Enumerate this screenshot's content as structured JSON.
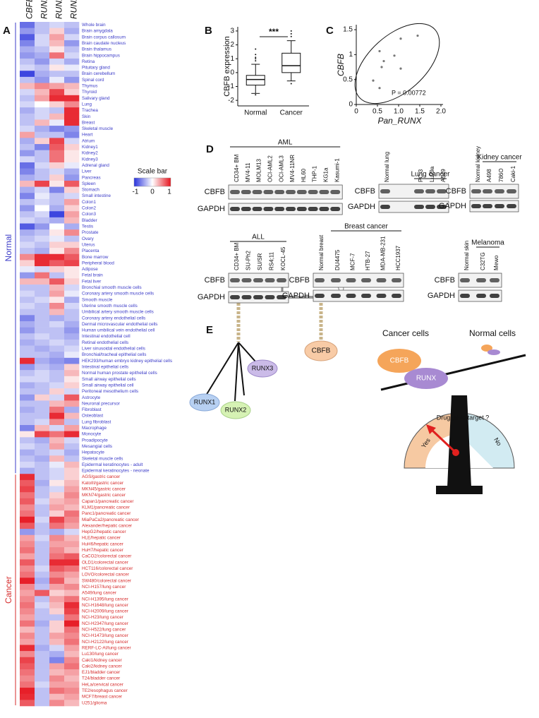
{
  "panels": [
    "A",
    "B",
    "C",
    "D",
    "E"
  ],
  "chart_data": [
    {
      "type": "heatmap",
      "columns": [
        "CBFB",
        "RUNX3",
        "RUNX2",
        "RUNX1"
      ],
      "colorbar_label": "Scale bar",
      "colorbar_ticks": [
        -1,
        0,
        1
      ],
      "groups": [
        {
          "label": "Normal",
          "color": "#3b3bc8",
          "categories": [
            "Whole brain",
            "Brain amygdala",
            "Brain corpus callosum",
            "Brain caudate nucleus",
            "Brain thalamus",
            "Brain hippocampus",
            "Retina",
            "Pituitary gland",
            "Brain cerebellum",
            "Spinal cord",
            "Thymus",
            "Thyroid",
            "Salivary gland",
            "Lung",
            "Trachea",
            "Skin",
            "Breast",
            "Skeletal muscle",
            "Heart",
            "Atrium",
            "Kidney1",
            "Kidney2",
            "Kidney3",
            "Adrenal gland",
            "Liver",
            "Pancreas",
            "Spleen",
            "Stomach",
            "Small intestine",
            "Colon1",
            "Colon2",
            "Colon3",
            "Bladder",
            "Testis",
            "Prostate",
            "Ovary",
            "Uterus",
            "Placenta",
            "Bone marrow",
            "Peripheral blood",
            "Adipose",
            "Fetal brain",
            "Fetal liver",
            "Bronchial smooth muscle cells",
            "Coronary artery smooth muscle cells",
            "Smooth muscle",
            "Uterine smooth muscle cells",
            "Umbilical artery smooth muscle cells",
            "Coronary artery endothelial cells",
            "Dermal microvascular endothelial cells",
            "Human umbilical vein endothelial cell",
            "Intestinal endothelial cell",
            "Retinal endothelial cells",
            "Liver sinusoidal endothelial cells",
            "Bronchial/tracheal epithelial cells",
            "HEK293/human embryo kidney epithelial cells",
            "Intestinal epithelial cells",
            "Normal human prostate epithelial cells",
            "Small airway epithelial cells",
            "Small airway epithelial cell",
            "Peritoneal mesothelium cells",
            "Astrocyte",
            "Neuronal precursor",
            "Fibroblast",
            "Osteoblast",
            "Lung fibroblast",
            "Macrophage",
            "Monocyte",
            "Proadipocyte",
            "Mesangial cells",
            "Hepatocyte",
            "Skeletal muscle cells",
            "Epidermal keratinocytes - adult",
            "Epidermal keratinocytes - neonate"
          ],
          "values": [
            [
              -0.7,
              -0.3,
              -0.2,
              -0.3
            ],
            [
              -0.5,
              -0.3,
              0.2,
              -0.4
            ],
            [
              -0.8,
              -0.2,
              0.4,
              -0.2
            ],
            [
              -0.6,
              -0.2,
              0.3,
              -0.5
            ],
            [
              -0.4,
              -0.3,
              0.1,
              -0.3
            ],
            [
              -0.5,
              -0.4,
              0.6,
              -0.2
            ],
            [
              -0.3,
              -0.5,
              -0.2,
              -0.4
            ],
            [
              -0.2,
              -0.3,
              0.1,
              -0.1
            ],
            [
              -0.9,
              -0.4,
              -0.3,
              -0.3
            ],
            [
              -0.3,
              -0.5,
              -0.1,
              -0.5
            ],
            [
              0.3,
              0.5,
              0.4,
              0.3
            ],
            [
              -0.2,
              0.3,
              0.8,
              0.2
            ],
            [
              -0.3,
              0.4,
              0.9,
              0.9
            ],
            [
              -0.2,
              0,
              0.2,
              0.5
            ],
            [
              -0.4,
              -0.2,
              -0.3,
              0.9
            ],
            [
              -0.3,
              -0.2,
              0.3,
              0.9
            ],
            [
              -0.3,
              0.3,
              -0.1,
              0.9
            ],
            [
              -0.2,
              -0.4,
              -0.6,
              -0.5
            ],
            [
              0.4,
              -0.3,
              -0.3,
              -0.6
            ],
            [
              -0.4,
              0.2,
              0.8,
              -0.2
            ],
            [
              -0.3,
              -0.6,
              0.7,
              0.2
            ],
            [
              -0.5,
              -0.3,
              0.6,
              0.1
            ],
            [
              -0.2,
              -0.3,
              0.6,
              0.1
            ],
            [
              -0.7,
              -0.2,
              0.2,
              -0.1
            ],
            [
              -0.6,
              -0.3,
              -0.2,
              -0.4
            ],
            [
              -0.4,
              -0.3,
              0.2,
              -0.5
            ],
            [
              0.3,
              0.8,
              0.1,
              0.7
            ],
            [
              -0.4,
              -0.2,
              -0.6,
              0.2
            ],
            [
              -0.6,
              -0.1,
              -0.3,
              -0.2
            ],
            [
              -0.3,
              -0.2,
              -0.3,
              0.4
            ],
            [
              -0.5,
              0,
              -0.4,
              0.2
            ],
            [
              -0.3,
              -0.2,
              -0.9,
              0.4
            ],
            [
              -0.2,
              -0.3,
              -0.4,
              0.3
            ],
            [
              -0.8,
              -0.5,
              0,
              -0.4
            ],
            [
              -0.4,
              -0.3,
              0.1,
              0.5
            ],
            [
              -0.3,
              -0.2,
              -0.1,
              -0.3
            ],
            [
              -0.2,
              -0.3,
              0.2,
              0.2
            ],
            [
              -0.3,
              -0.4,
              0.1,
              0.5
            ],
            [
              0.5,
              0.9,
              0.9,
              0.7
            ],
            [
              0.2,
              0.9,
              0.7,
              0.8
            ],
            [
              -0.1,
              -0.2,
              0.2,
              0.1
            ],
            [
              -0.5,
              0.6,
              -0.3,
              0.1
            ],
            [
              0.3,
              0.3,
              0.7,
              0.2
            ],
            [
              -0.3,
              -0.3,
              0.3,
              -0.2
            ],
            [
              -0.2,
              -0.3,
              0.4,
              -0.1
            ],
            [
              -0.3,
              -0.2,
              0.1,
              -0.4
            ],
            [
              -0.2,
              -0.3,
              0.5,
              -0.2
            ],
            [
              -0.3,
              -0.3,
              0.3,
              -0.3
            ],
            [
              -0.6,
              -0.3,
              -0.4,
              -0.3
            ],
            [
              -0.4,
              -0.3,
              -0.2,
              -0.4
            ],
            [
              -0.5,
              -0.3,
              -0.3,
              -0.5
            ],
            [
              -0.3,
              -0.2,
              -0.3,
              -0.4
            ],
            [
              -0.4,
              -0.3,
              -0.2,
              -0.3
            ],
            [
              -0.3,
              -0.4,
              -0.3,
              -0.2
            ],
            [
              -0.3,
              -0.3,
              -0.4,
              -0.1
            ],
            [
              0.9,
              -0.4,
              -0.5,
              -0.6
            ],
            [
              -0.5,
              -0.3,
              -0.4,
              0.2
            ],
            [
              -0.3,
              -0.2,
              -0.3,
              0.3
            ],
            [
              -0.2,
              -0.2,
              -0.3,
              0.1
            ],
            [
              -0.4,
              -0.3,
              -0.2,
              0.2
            ],
            [
              -0.3,
              -0.3,
              0.2,
              -0.2
            ],
            [
              -0.5,
              0.2,
              -0.2,
              0.7
            ],
            [
              -0.3,
              -0.3,
              0.3,
              0.4
            ],
            [
              -0.4,
              -0.3,
              0.6,
              -0.4
            ],
            [
              -0.3,
              -0.3,
              0.9,
              0.3
            ],
            [
              -0.3,
              -0.2,
              0.5,
              -0.3
            ],
            [
              -0.6,
              0.3,
              -0.2,
              0.4
            ],
            [
              0.1,
              0.8,
              0.6,
              0.9
            ],
            [
              -0.3,
              -0.4,
              0.3,
              -0.2
            ],
            [
              -0.2,
              -0.3,
              0.4,
              -0.3
            ],
            [
              -0.4,
              -0.3,
              -0.2,
              -0.4
            ],
            [
              -0.3,
              -0.4,
              0.3,
              -0.3
            ],
            [
              -0.2,
              -0.3,
              -0.1,
              0.3
            ],
            [
              -0.4,
              -0.3,
              -0.2,
              0.2
            ]
          ]
        },
        {
          "label": "Cancer",
          "color": "#d62b2b",
          "categories": [
            "AGS/gastric cancer",
            "KatoIII/gastric cancer",
            "MKN45/gastric cancer",
            "MKN74/gastric cancer",
            "Capan1/pancreatic cancer",
            "KLM1/pancreatic cancer",
            "Panc1/pancreatic cancer",
            "MiaPaCa2/pancreatic cancer",
            "Alexander/hepatic cancer",
            "HepG2/hepatic cancer",
            "HLE/hepatic cancer",
            "HuH6/hepatic cancer",
            "HuH7/hepatic cancer",
            "CaCO2/colorectal cancer",
            "OLD1/colorectal cancer",
            "HCT116/colorectal cancer",
            "LOVO/colorectal cancer",
            "SW480/colorectal cancer",
            "NCI-H157/lung cancer",
            "A549/lung cancer",
            "NCI-H1395/lung cancer",
            "NCI-H1648/lung cancer",
            "NCI-H2009/lung cancer",
            "NCI-H23/lung cancer",
            "NCI-H2347/lung cancer",
            "NCI-H522/lung cancer",
            "NCI-H1473/lung cancer",
            "NCI-H2122/lung cancer",
            "RERF-LC-AI/lung cancer",
            "Lu130/lung cancer",
            "Caki1/kidney cancer",
            "Caki2/kidney cancer",
            "EJ1/bladder cancer",
            "T24/bladder cancer",
            "HeLa/cervical cancer",
            "TE2/esophagus cancer",
            "MCF7/breast cancer",
            "U251/glioma"
          ],
          "values": [
            [
              0.9,
              -0.3,
              -0.2,
              0.2
            ],
            [
              0.7,
              -0.4,
              0.1,
              0.3
            ],
            [
              0.8,
              -0.3,
              -0.2,
              0.4
            ],
            [
              0.6,
              -0.3,
              0.2,
              0.5
            ],
            [
              0.7,
              -0.2,
              0.3,
              0.4
            ],
            [
              0.5,
              -0.3,
              0.4,
              0.3
            ],
            [
              0.6,
              -0.3,
              0.2,
              0.6
            ],
            [
              0.95,
              -0.2,
              0.8,
              0.5
            ],
            [
              0.7,
              -0.3,
              0.6,
              0.4
            ],
            [
              -0.5,
              -0.3,
              -0.4,
              -0.2
            ],
            [
              0.4,
              -0.2,
              0.5,
              0.3
            ],
            [
              0.5,
              -0.3,
              0.4,
              0.4
            ],
            [
              0.6,
              -0.3,
              0.5,
              0.3
            ],
            [
              0.4,
              -0.3,
              0.6,
              0.7
            ],
            [
              0.7,
              -0.3,
              0.9,
              0.9
            ],
            [
              0.5,
              -0.2,
              0.7,
              0.6
            ],
            [
              0.6,
              -0.3,
              0.5,
              0.4
            ],
            [
              0.95,
              -0.4,
              0.7,
              0.3
            ],
            [
              0.5,
              -0.3,
              0.4,
              0.5
            ],
            [
              0.4,
              0.7,
              0.2,
              0.3
            ],
            [
              0.5,
              -0.3,
              0.4,
              0.6
            ],
            [
              0.6,
              -0.2,
              0.3,
              0.9
            ],
            [
              0.5,
              -0.3,
              0.2,
              0.8
            ],
            [
              0.4,
              -0.3,
              -0.3,
              0.6
            ],
            [
              0.6,
              -0.4,
              0.2,
              0.95
            ],
            [
              0.3,
              -0.3,
              0.2,
              0.6
            ],
            [
              0.5,
              -0.3,
              0.4,
              0.5
            ],
            [
              0.4,
              -0.3,
              0.3,
              0.6
            ],
            [
              0.9,
              -0.4,
              -0.2,
              0.4
            ],
            [
              0.5,
              -0.3,
              -0.4,
              0.3
            ],
            [
              0.8,
              -0.3,
              -0.6,
              0.5
            ],
            [
              0.7,
              -0.3,
              0.4,
              0.6
            ],
            [
              0.6,
              -0.3,
              0.3,
              0.4
            ],
            [
              0.5,
              -0.3,
              0.5,
              0.3
            ],
            [
              0.6,
              -0.2,
              0.4,
              0.4
            ],
            [
              0.95,
              -0.3,
              0.6,
              0.5
            ],
            [
              0.9,
              -0.3,
              0.3,
              0.4
            ],
            [
              0.7,
              -0.3,
              0.5,
              0.3
            ]
          ]
        }
      ]
    },
    {
      "type": "box",
      "ylabel": "CBFB expression",
      "annotation": "***",
      "categories": [
        "Normal",
        "Cancer"
      ],
      "boxes": [
        {
          "min": -1.5,
          "q1": -0.9,
          "median": -0.5,
          "q3": -0.2,
          "max": 0.6,
          "outliers": [
            0.85,
            1.0,
            1.1,
            1.3,
            1.7,
            -1.6
          ]
        },
        {
          "min": -0.6,
          "q1": 0.0,
          "median": 0.5,
          "q3": 1.4,
          "max": 2.3,
          "outliers": [
            2.6,
            2.8,
            3.0,
            -0.8
          ]
        }
      ],
      "ylim": [
        -2.4,
        3.3
      ],
      "yticks": [
        -2,
        -1,
        0,
        1,
        2,
        3
      ]
    },
    {
      "type": "scatter",
      "xlabel": "Pan_RUNX",
      "ylabel": "CBFB",
      "annotation": "P = 0.00772",
      "x": [
        0.4,
        0.55,
        0.6,
        0.65,
        0.55,
        0.9,
        1.05,
        1.05,
        1.45
      ],
      "y": [
        0.48,
        0.33,
        0.75,
        0.87,
        1.07,
        0.98,
        1.32,
        0.72,
        1.38
      ],
      "xlim": [
        0,
        2.05
      ],
      "xticks": [
        0,
        0.5,
        {
          "value": 1,
          "label": "1.0"
        },
        1.5,
        {
          "value": 2,
          "label": "2.0"
        }
      ],
      "ylim": [
        0,
        1.6
      ],
      "yticks": [
        0,
        0.5,
        1,
        1.5
      ]
    }
  ],
  "blots": [
    {
      "header": "AML",
      "lanes": [
        "CD34+ BM",
        "MV4-11",
        "MOLM13",
        "OCI-AML2",
        "OCI-AML3",
        "MV4-11NR",
        "HL60",
        "THP-1",
        "KG1a",
        "Kasumi-1"
      ],
      "rows": [
        "CBFB",
        "GAPDH"
      ]
    },
    {
      "control": "Normal lung",
      "header": "Lung cancer",
      "lanes": [
        "PC-3",
        "Lu99a",
        "A549"
      ],
      "rows": [
        "CBFB",
        "GAPDH"
      ]
    },
    {
      "control": "Normal kidney",
      "header": "Kidney cancer",
      "lanes": [
        "A498",
        "786O",
        "Caki-1"
      ],
      "rows": [
        "CBFB",
        "GAPDH"
      ]
    },
    {
      "header": "ALL",
      "lanes": [
        "CD34+ BM",
        "SU-Ph2",
        "SU/SR",
        "RS4;11",
        "KOCL-45"
      ],
      "rows": [
        "CBFB",
        "GAPDH"
      ]
    },
    {
      "control": "Normal breast",
      "header": "Breast cancer",
      "lanes": [
        "DU4475",
        "MCF-7",
        "HTB-27",
        "MDA-MB-231",
        "HCC1937"
      ],
      "rows": [
        "CBFB",
        "GAPDH"
      ]
    },
    {
      "control": "Normal skin",
      "header": "Melanoma",
      "lanes": [
        "C32TG",
        "Mewo"
      ],
      "rows": [
        "CBFB",
        "GAPDH"
      ]
    }
  ],
  "diagram": {
    "balance": {
      "left": [
        "RUNX1",
        "RUNX2",
        "RUNX3"
      ],
      "right": "CBFB"
    },
    "seesaw": {
      "cancer_label": "Cancer cells",
      "normal_label": "Normal cells",
      "proteins": [
        "CBFB",
        "RUNX"
      ],
      "question": "Druggable target ?",
      "yes": "Yes",
      "no": "No"
    }
  }
}
